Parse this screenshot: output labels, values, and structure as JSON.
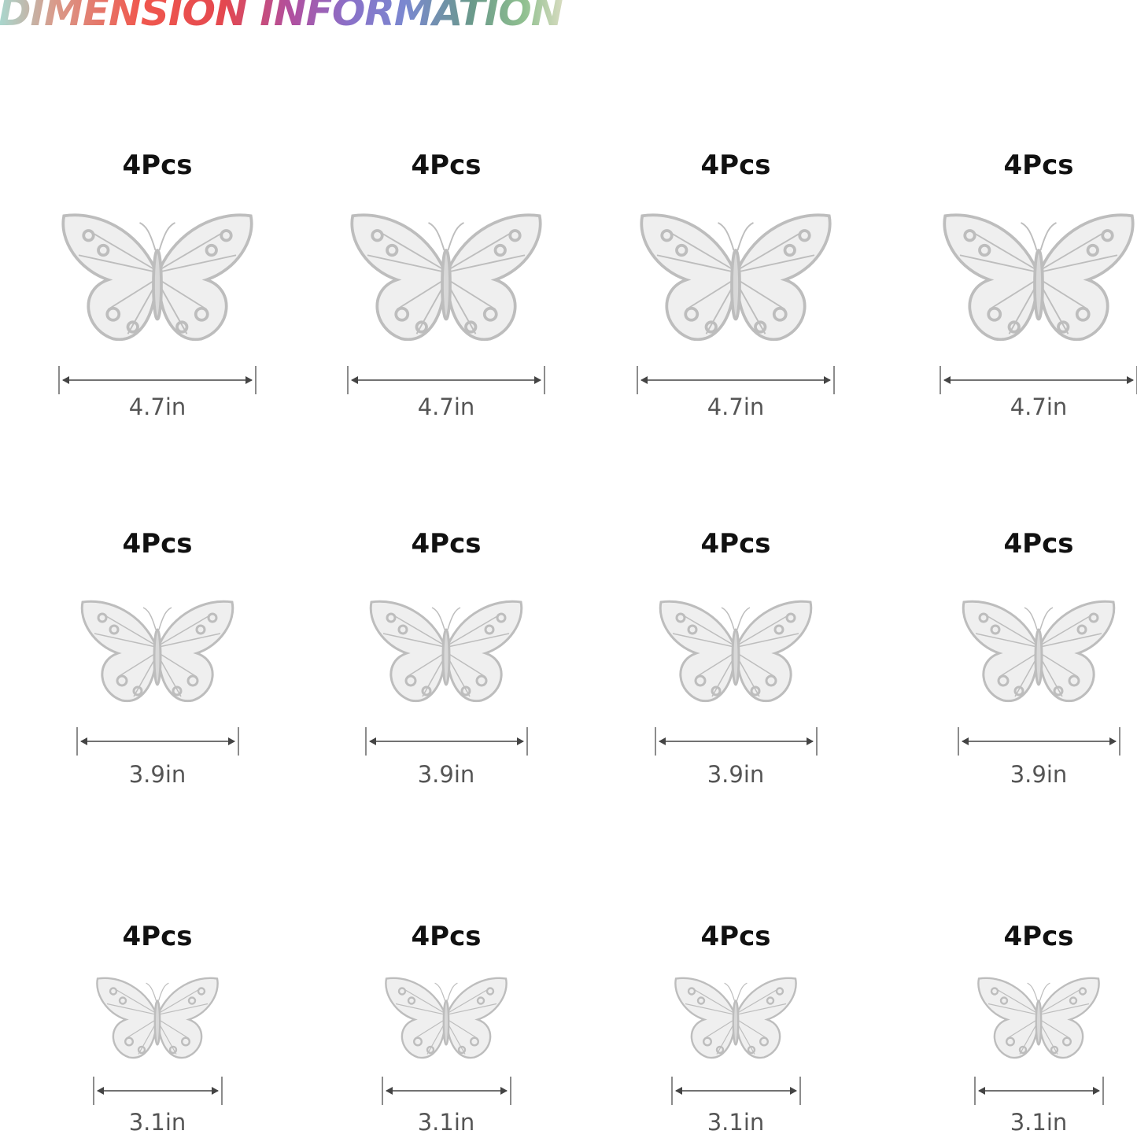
{
  "title": "DIMENSION INFORMATION",
  "rows": [
    {
      "items": [
        {
          "qty": "4Pcs",
          "size": "4.7in",
          "style": "dotted"
        },
        {
          "qty": "4Pcs",
          "size": "4.7in",
          "style": "lace"
        },
        {
          "qty": "4Pcs",
          "size": "4.7in",
          "style": "swallowtail"
        },
        {
          "qty": "4Pcs",
          "size": "4.7in",
          "style": "veined"
        }
      ]
    },
    {
      "items": [
        {
          "qty": "4Pcs",
          "size": "3.9in",
          "style": "dotted"
        },
        {
          "qty": "4Pcs",
          "size": "3.9in",
          "style": "lace"
        },
        {
          "qty": "4Pcs",
          "size": "3.9in",
          "style": "swallowtail"
        },
        {
          "qty": "4Pcs",
          "size": "3.9in",
          "style": "veined"
        }
      ]
    },
    {
      "items": [
        {
          "qty": "4Pcs",
          "size": "3.1in",
          "style": "dotted"
        },
        {
          "qty": "4Pcs",
          "size": "3.1in",
          "style": "lace"
        },
        {
          "qty": "4Pcs",
          "size": "3.1in",
          "style": "swallowtail"
        },
        {
          "qty": "4Pcs",
          "size": "3.1in",
          "style": "veined"
        }
      ]
    }
  ],
  "colors": {
    "butterfly": "#c8c8c8",
    "arrow": "#444444",
    "label": "#111111",
    "dimension": "#555555"
  }
}
